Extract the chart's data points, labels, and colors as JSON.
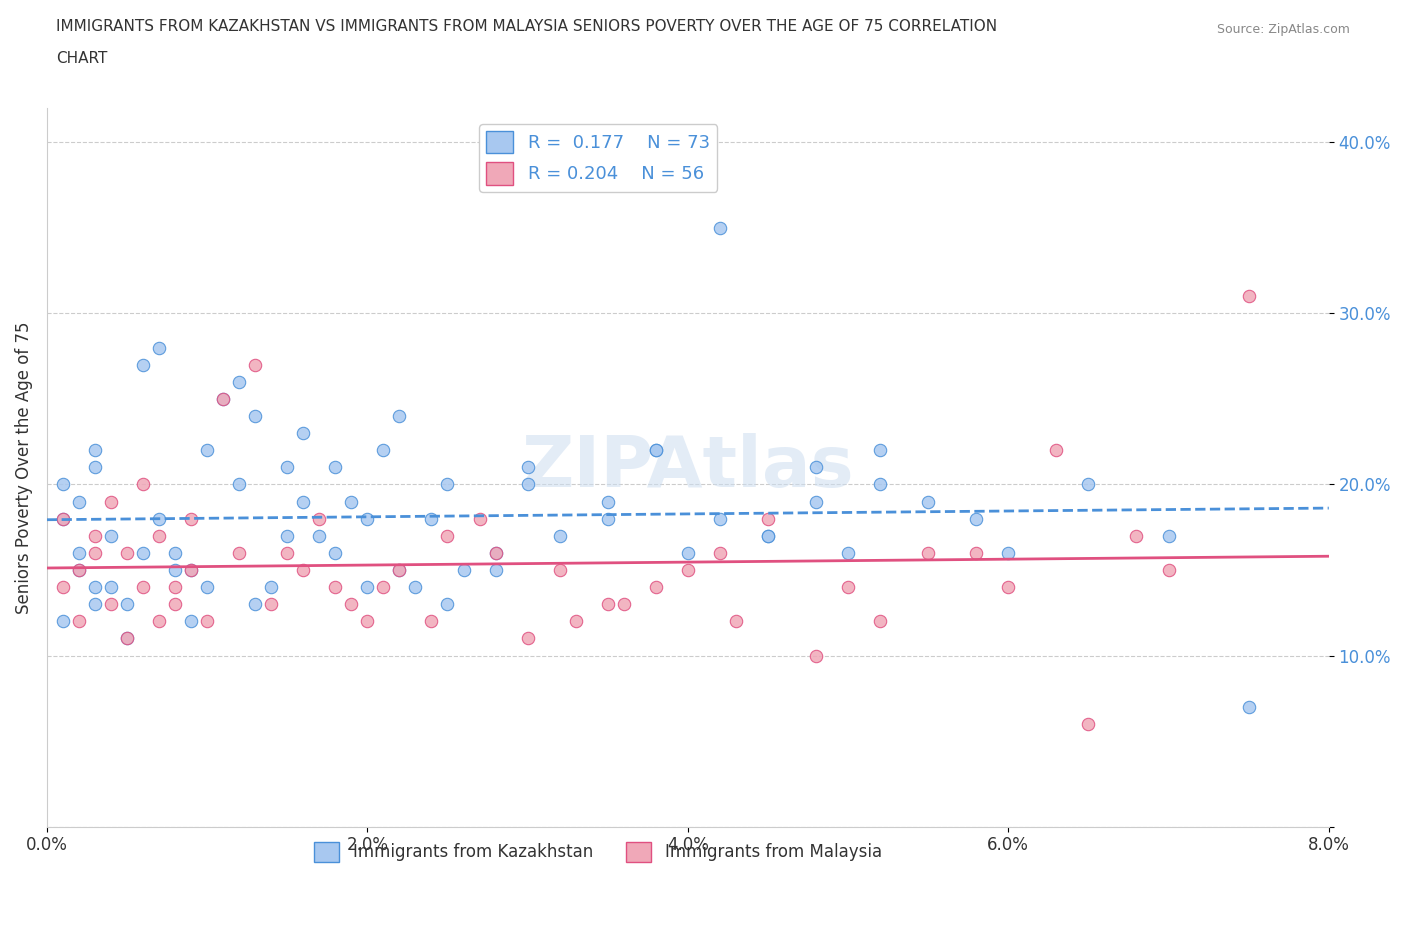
{
  "title_line1": "IMMIGRANTS FROM KAZAKHSTAN VS IMMIGRANTS FROM MALAYSIA SENIORS POVERTY OVER THE AGE OF 75 CORRELATION",
  "title_line2": "CHART",
  "source": "Source: ZipAtlas.com",
  "ylabel": "Seniors Poverty Over the Age of 75",
  "xlabel_kaz": "Immigrants from Kazakhstan",
  "xlabel_mal": "Immigrants from Malaysia",
  "xlim": [
    0.0,
    0.08
  ],
  "ylim": [
    0.0,
    0.42
  ],
  "xticks": [
    0.0,
    0.02,
    0.04,
    0.06,
    0.08
  ],
  "xtick_labels": [
    "0.0%",
    "2.0%",
    "4.0%",
    "6.0%",
    "8.0%"
  ],
  "yticks": [
    0.0,
    0.1,
    0.2,
    0.3,
    0.4
  ],
  "ytick_labels": [
    "",
    "10.0%",
    "20.0%",
    "30.0%",
    "40.0%"
  ],
  "R_kaz": 0.177,
  "N_kaz": 73,
  "R_mal": 0.204,
  "N_mal": 56,
  "color_kaz": "#a8c8f0",
  "color_mal": "#f0a8b8",
  "trendline_kaz": "#4a90d9",
  "trendline_mal": "#e05080",
  "watermark": "ZIPAtlas",
  "kaz_x": [
    0.001,
    0.002,
    0.001,
    0.003,
    0.002,
    0.003,
    0.001,
    0.004,
    0.005,
    0.003,
    0.002,
    0.006,
    0.004,
    0.003,
    0.007,
    0.005,
    0.008,
    0.006,
    0.009,
    0.007,
    0.01,
    0.008,
    0.012,
    0.009,
    0.011,
    0.013,
    0.015,
    0.01,
    0.014,
    0.016,
    0.018,
    0.012,
    0.02,
    0.015,
    0.022,
    0.013,
    0.017,
    0.025,
    0.019,
    0.021,
    0.023,
    0.016,
    0.028,
    0.024,
    0.03,
    0.026,
    0.032,
    0.018,
    0.035,
    0.02,
    0.038,
    0.04,
    0.022,
    0.042,
    0.025,
    0.045,
    0.028,
    0.048,
    0.03,
    0.05,
    0.035,
    0.042,
    0.038,
    0.052,
    0.045,
    0.055,
    0.048,
    0.06,
    0.052,
    0.058,
    0.065,
    0.07,
    0.075
  ],
  "kaz_y": [
    0.12,
    0.15,
    0.18,
    0.14,
    0.16,
    0.13,
    0.2,
    0.17,
    0.11,
    0.22,
    0.19,
    0.16,
    0.14,
    0.21,
    0.28,
    0.13,
    0.15,
    0.27,
    0.12,
    0.18,
    0.14,
    0.16,
    0.2,
    0.15,
    0.25,
    0.13,
    0.17,
    0.22,
    0.14,
    0.19,
    0.16,
    0.26,
    0.18,
    0.21,
    0.15,
    0.24,
    0.17,
    0.13,
    0.19,
    0.22,
    0.14,
    0.23,
    0.16,
    0.18,
    0.2,
    0.15,
    0.17,
    0.21,
    0.19,
    0.14,
    0.22,
    0.16,
    0.24,
    0.18,
    0.2,
    0.17,
    0.15,
    0.19,
    0.21,
    0.16,
    0.18,
    0.35,
    0.22,
    0.2,
    0.17,
    0.19,
    0.21,
    0.16,
    0.22,
    0.18,
    0.2,
    0.17,
    0.07
  ],
  "mal_x": [
    0.001,
    0.002,
    0.003,
    0.001,
    0.004,
    0.002,
    0.005,
    0.003,
    0.006,
    0.004,
    0.007,
    0.005,
    0.008,
    0.006,
    0.009,
    0.007,
    0.01,
    0.008,
    0.012,
    0.009,
    0.014,
    0.011,
    0.016,
    0.013,
    0.018,
    0.015,
    0.02,
    0.017,
    0.022,
    0.019,
    0.025,
    0.021,
    0.028,
    0.024,
    0.032,
    0.027,
    0.035,
    0.03,
    0.038,
    0.033,
    0.042,
    0.036,
    0.045,
    0.04,
    0.05,
    0.043,
    0.055,
    0.048,
    0.06,
    0.052,
    0.065,
    0.058,
    0.07,
    0.063,
    0.075,
    0.068
  ],
  "mal_y": [
    0.14,
    0.12,
    0.16,
    0.18,
    0.13,
    0.15,
    0.11,
    0.17,
    0.14,
    0.19,
    0.12,
    0.16,
    0.13,
    0.2,
    0.15,
    0.17,
    0.12,
    0.14,
    0.16,
    0.18,
    0.13,
    0.25,
    0.15,
    0.27,
    0.14,
    0.16,
    0.12,
    0.18,
    0.15,
    0.13,
    0.17,
    0.14,
    0.16,
    0.12,
    0.15,
    0.18,
    0.13,
    0.11,
    0.14,
    0.12,
    0.16,
    0.13,
    0.18,
    0.15,
    0.14,
    0.12,
    0.16,
    0.1,
    0.14,
    0.12,
    0.06,
    0.16,
    0.15,
    0.22,
    0.31,
    0.17
  ]
}
